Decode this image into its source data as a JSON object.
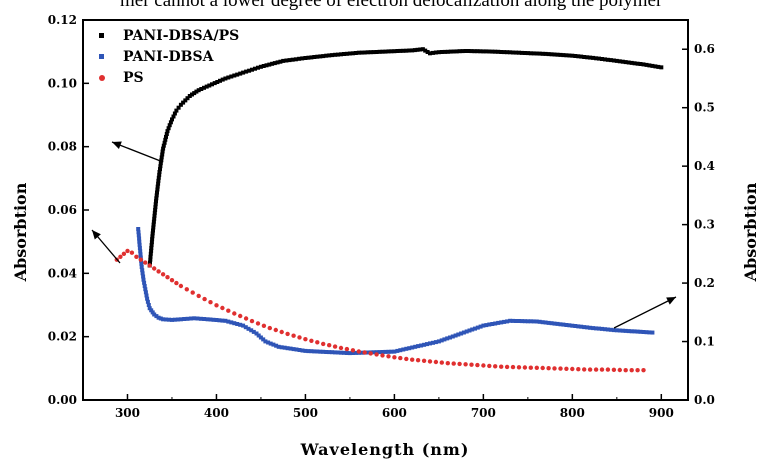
{
  "header_fragment": "mer cannot a lower degree of electron delocalization along the polymer",
  "chart_data": {
    "type": "scatter",
    "xlabel": "Wavelength  (nm)",
    "ylabel_left": "Absorbtion",
    "ylabel_right": "Absorbtion",
    "xlim": [
      250,
      930
    ],
    "ylim_left": [
      0,
      0.12
    ],
    "ylim_right": [
      0,
      0.65
    ],
    "x_ticks": [
      300,
      400,
      500,
      600,
      700,
      800,
      900
    ],
    "y_left_ticks": [
      "0.00",
      "0.02",
      "0.04",
      "0.06",
      "0.08",
      "0.10",
      "0.12"
    ],
    "y_right_ticks": [
      "0.0",
      "0.1",
      "0.2",
      "0.3",
      "0.4",
      "0.5",
      "0.6"
    ],
    "legend_position": "top-left",
    "series": [
      {
        "name": "PANI-DBSA/PS",
        "color": "#000000",
        "axis": "right",
        "marker": "square",
        "x": [
          325,
          328,
          332,
          336,
          340,
          345,
          350,
          355,
          360,
          370,
          380,
          395,
          410,
          430,
          450,
          475,
          500,
          530,
          560,
          590,
          620,
          632,
          640,
          650,
          680,
          710,
          740,
          770,
          800,
          830,
          860,
          880,
          900
        ],
        "values": [
          0.23,
          0.28,
          0.34,
          0.39,
          0.43,
          0.46,
          0.48,
          0.495,
          0.505,
          0.52,
          0.53,
          0.54,
          0.55,
          0.56,
          0.57,
          0.58,
          0.585,
          0.59,
          0.594,
          0.596,
          0.598,
          0.6,
          0.593,
          0.595,
          0.597,
          0.596,
          0.594,
          0.592,
          0.589,
          0.584,
          0.578,
          0.574,
          0.569
        ]
      },
      {
        "name": "PANI-DBSA",
        "color": "#2f55b7",
        "axis": "left",
        "marker": "square",
        "x": [
          312,
          314,
          316,
          318,
          320,
          322,
          325,
          330,
          335,
          340,
          350,
          360,
          375,
          390,
          410,
          430,
          445,
          455,
          470,
          500,
          550,
          600,
          650,
          700,
          730,
          760,
          790,
          820,
          850,
          890
        ],
        "values": [
          0.054,
          0.048,
          0.042,
          0.038,
          0.035,
          0.032,
          0.029,
          0.027,
          0.026,
          0.0255,
          0.0253,
          0.0255,
          0.0258,
          0.0255,
          0.025,
          0.0235,
          0.021,
          0.0185,
          0.0168,
          0.0155,
          0.0148,
          0.0153,
          0.0185,
          0.0235,
          0.025,
          0.0248,
          0.0238,
          0.0228,
          0.022,
          0.0213
        ]
      },
      {
        "name": "PS",
        "color": "#e03030",
        "axis": "right",
        "marker": "circle",
        "x": [
          288,
          292,
          296,
          300,
          305,
          310,
          320,
          340,
          360,
          380,
          400,
          420,
          440,
          460,
          480,
          500,
          520,
          540,
          560,
          580,
          600,
          620,
          640,
          660,
          680,
          700,
          720,
          740,
          760,
          780,
          800,
          820,
          840,
          860,
          880
        ],
        "values": [
          0.24,
          0.245,
          0.25,
          0.255,
          0.252,
          0.245,
          0.235,
          0.215,
          0.195,
          0.178,
          0.162,
          0.148,
          0.135,
          0.123,
          0.113,
          0.104,
          0.096,
          0.089,
          0.083,
          0.078,
          0.073,
          0.069,
          0.066,
          0.063,
          0.061,
          0.059,
          0.057,
          0.056,
          0.055,
          0.054,
          0.053,
          0.052,
          0.052,
          0.051,
          0.051
        ]
      }
    ]
  }
}
